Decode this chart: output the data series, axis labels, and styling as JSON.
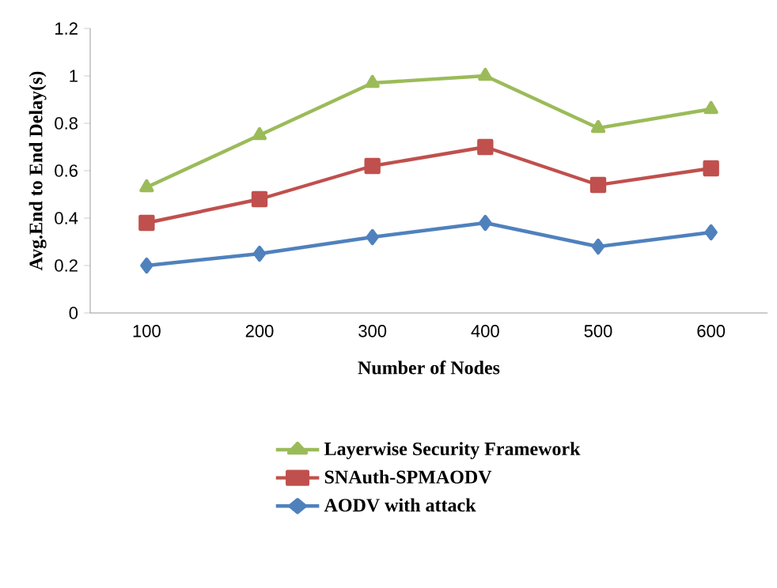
{
  "chart_data": {
    "type": "line",
    "xlabel": "Number of Nodes",
    "ylabel": "Avg.End to End Delay(s)",
    "categories": [
      "100",
      "200",
      "300",
      "400",
      "500",
      "600"
    ],
    "ylim": [
      0,
      1.2
    ],
    "yticks": [
      0,
      0.2,
      0.4,
      0.6,
      0.8,
      1,
      1.2
    ],
    "grid": false,
    "legend": "bottom",
    "series": [
      {
        "name": "Layerwise Security Framework",
        "color": "#9bbb59",
        "marker": "triangle",
        "values": [
          0.53,
          0.75,
          0.97,
          1.0,
          0.78,
          0.86
        ]
      },
      {
        "name": "SNAuth-SPMAODV",
        "color": "#c0504d",
        "marker": "square",
        "values": [
          0.38,
          0.48,
          0.62,
          0.7,
          0.54,
          0.61
        ]
      },
      {
        "name": "AODV with attack",
        "color": "#4f81bd",
        "marker": "diamond",
        "values": [
          0.2,
          0.25,
          0.32,
          0.38,
          0.28,
          0.34
        ]
      }
    ]
  }
}
